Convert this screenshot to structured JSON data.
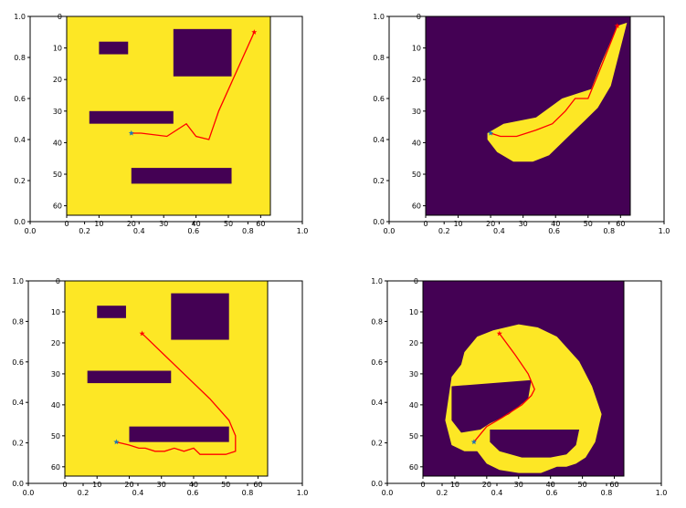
{
  "colors": {
    "free": "#fde725",
    "obstacle": "#440154",
    "path": "#ff0000",
    "start": "#1f77b4",
    "goal": "#ff0000",
    "axis": "#000000"
  },
  "chart_data": [
    {
      "type": "heatmap",
      "title": "",
      "outer_axes": {
        "xlim": [
          0.0,
          1.0
        ],
        "ylim": [
          0.0,
          1.0
        ],
        "xticks": [
          "0.0",
          "0.2",
          "0.4",
          "0.6",
          "0.8",
          "1.0"
        ],
        "yticks": [
          "0.0",
          "0.2",
          "0.4",
          "0.6",
          "0.8",
          "1.0"
        ]
      },
      "grid_axes": {
        "xlim": [
          0,
          63
        ],
        "ylim": [
          63,
          0
        ],
        "xticks": [
          "0",
          "10",
          "20",
          "30",
          "40",
          "50",
          "60"
        ],
        "yticks": [
          "0",
          "10",
          "20",
          "30",
          "40",
          "50",
          "60"
        ]
      },
      "background": "free",
      "regions": [
        {
          "label": "obstacle",
          "x": [
            10,
            19
          ],
          "y": [
            8,
            12
          ]
        },
        {
          "label": "obstacle",
          "x": [
            33,
            51
          ],
          "y": [
            4,
            19
          ]
        },
        {
          "label": "obstacle",
          "x": [
            7,
            33
          ],
          "y": [
            30,
            34
          ]
        },
        {
          "label": "obstacle",
          "x": [
            20,
            51
          ],
          "y": [
            48,
            53
          ]
        }
      ],
      "path": {
        "x": [
          20,
          23,
          31,
          37,
          40,
          44,
          47,
          58
        ],
        "y": [
          37,
          37,
          38,
          34,
          38,
          39,
          30,
          5
        ]
      },
      "start": {
        "x": 20,
        "y": 37
      },
      "goal": {
        "x": 58,
        "y": 5
      }
    },
    {
      "type": "heatmap",
      "title": "",
      "outer_axes": {
        "xlim": [
          0.0,
          1.0
        ],
        "ylim": [
          0.0,
          1.0
        ],
        "xticks": [
          "0.0",
          "0.2",
          "0.4",
          "0.6",
          "0.8",
          "1.0"
        ],
        "yticks": [
          "0.0",
          "0.2",
          "0.4",
          "0.6",
          "0.8",
          "1.0"
        ]
      },
      "grid_axes": {
        "xlim": [
          0,
          63
        ],
        "ylim": [
          63,
          0
        ],
        "xticks": [
          "0",
          "10",
          "20",
          "30",
          "40",
          "50",
          "60"
        ],
        "yticks": [
          "0",
          "10",
          "20",
          "30",
          "40",
          "50",
          "60"
        ]
      },
      "background": "obstacle",
      "regions": [
        {
          "label": "free",
          "polygon_x": [
            19,
            24,
            34,
            42,
            51,
            54,
            59,
            62,
            60,
            57,
            53,
            49,
            44,
            38,
            33,
            27,
            22,
            19
          ],
          "polygon_y": [
            37,
            34,
            32,
            26,
            23,
            15,
            3,
            2,
            10,
            22,
            29,
            33,
            38,
            44,
            46,
            46,
            43,
            39
          ]
        }
      ],
      "path": {
        "x": [
          20,
          23,
          28,
          34,
          39,
          43,
          46,
          50,
          54,
          59
        ],
        "y": [
          37,
          38,
          38,
          36,
          34,
          30,
          26,
          26,
          16,
          3
        ]
      },
      "start": {
        "x": 20,
        "y": 37
      },
      "goal": {
        "x": 59,
        "y": 3
      }
    },
    {
      "type": "heatmap",
      "title": "",
      "outer_axes": {
        "xlim": [
          0.0,
          1.0
        ],
        "ylim": [
          0.0,
          1.0
        ],
        "xticks": [
          "0.0",
          "0.2",
          "0.4",
          "0.6",
          "0.8",
          "1.0"
        ],
        "yticks": [
          "0.0",
          "0.2",
          "0.4",
          "0.6",
          "0.8",
          "1.0"
        ]
      },
      "grid_axes": {
        "xlim": [
          0,
          63
        ],
        "ylim": [
          63,
          0
        ],
        "xticks": [
          "0",
          "10",
          "20",
          "30",
          "40",
          "50",
          "60"
        ],
        "yticks": [
          "0",
          "10",
          "20",
          "30",
          "40",
          "50",
          "60"
        ]
      },
      "background": "free",
      "regions": [
        {
          "label": "obstacle",
          "x": [
            10,
            19
          ],
          "y": [
            8,
            12
          ]
        },
        {
          "label": "obstacle",
          "x": [
            33,
            51
          ],
          "y": [
            4,
            19
          ]
        },
        {
          "label": "obstacle",
          "x": [
            7,
            33
          ],
          "y": [
            29,
            33
          ]
        },
        {
          "label": "obstacle",
          "x": [
            20,
            51
          ],
          "y": [
            47,
            52
          ]
        }
      ],
      "path": {
        "x": [
          24,
          31,
          38,
          45,
          51,
          53,
          53,
          50,
          46,
          42,
          40,
          37,
          34,
          31,
          28,
          25,
          23,
          20,
          16
        ],
        "y": [
          17,
          24,
          31,
          38,
          45,
          50,
          55,
          56,
          56,
          56,
          54,
          55,
          54,
          55,
          55,
          54,
          54,
          53,
          52
        ]
      },
      "start": {
        "x": 16,
        "y": 52
      },
      "goal": {
        "x": 24,
        "y": 17
      }
    },
    {
      "type": "heatmap",
      "title": "",
      "outer_axes": {
        "xlim": [
          0.0,
          1.0
        ],
        "ylim": [
          0.0,
          1.0
        ],
        "xticks": [
          "0.0",
          "0.2",
          "0.4",
          "0.6",
          "0.8",
          "1.0"
        ],
        "yticks": [
          "0.0",
          "0.2",
          "0.4",
          "0.6",
          "0.8",
          "1.0"
        ]
      },
      "grid_axes": {
        "xlim": [
          0,
          63
        ],
        "ylim": [
          63,
          0
        ],
        "xticks": [
          "0",
          "10",
          "20",
          "30",
          "40",
          "50",
          "60"
        ],
        "yticks": [
          "0",
          "10",
          "20",
          "30",
          "40",
          "50",
          "60"
        ]
      },
      "background": "obstacle",
      "regions": [
        {
          "label": "free",
          "polygon_x": [
            17,
            22,
            30,
            36,
            42,
            49,
            53,
            56,
            54,
            51,
            48,
            45,
            42,
            37,
            30,
            24,
            20,
            17,
            13,
            9,
            7,
            9,
            12,
            13,
            17
          ],
          "polygon_y": [
            18,
            16,
            14,
            15,
            18,
            26,
            34,
            43,
            52,
            57,
            59,
            60,
            60,
            62,
            62,
            61,
            59,
            55,
            55,
            53,
            45,
            31,
            27,
            23,
            18
          ]
        },
        {
          "label": "obstacle",
          "polygon_x": [
            9,
            34,
            33,
            27,
            21,
            18,
            12,
            9
          ],
          "polygon_y": [
            34,
            32,
            38,
            43,
            46,
            48,
            49,
            45
          ]
        },
        {
          "label": "obstacle",
          "polygon_x": [
            21,
            49,
            48,
            45,
            40,
            31,
            24,
            21
          ],
          "polygon_y": [
            48,
            48,
            53,
            56,
            57,
            57,
            55,
            52
          ]
        }
      ],
      "path": {
        "x": [
          24,
          29,
          33,
          35,
          34,
          31,
          25,
          20,
          16
        ],
        "y": [
          17,
          24,
          30,
          35,
          37,
          40,
          44,
          47,
          52
        ]
      },
      "start": {
        "x": 16,
        "y": 52
      },
      "goal": {
        "x": 24,
        "y": 17
      }
    }
  ]
}
